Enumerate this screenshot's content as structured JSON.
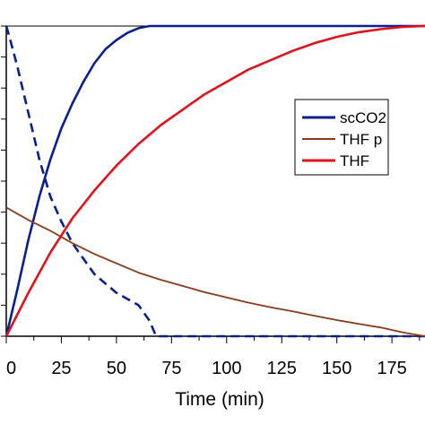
{
  "chart_data": {
    "type": "line",
    "title": "",
    "xlabel": "Time (min)",
    "ylabel": "",
    "xlim": [
      0,
      190
    ],
    "ylim": [
      0,
      1
    ],
    "x_ticks": [
      0,
      25,
      50,
      75,
      100,
      125,
      150,
      175
    ],
    "grid": false,
    "legend_position": "right",
    "series": [
      {
        "name": "scCO2",
        "color": "#0a1f8f",
        "dash": "solid",
        "x": [
          0,
          5,
          10,
          15,
          20,
          25,
          30,
          35,
          40,
          45,
          50,
          55,
          60,
          65,
          70,
          190
        ],
        "y": [
          0.0,
          0.15,
          0.31,
          0.45,
          0.57,
          0.67,
          0.75,
          0.82,
          0.88,
          0.925,
          0.955,
          0.978,
          0.993,
          1.0,
          1.0,
          1.0
        ]
      },
      {
        "name": "",
        "color": "#0a1f8f",
        "dash": "dashed",
        "x": [
          0,
          2,
          5,
          10,
          15,
          20,
          25,
          30,
          33,
          35,
          38,
          40,
          45,
          50,
          55,
          60,
          65,
          68,
          70,
          190
        ],
        "y": [
          1.0,
          0.95,
          0.87,
          0.72,
          0.57,
          0.45,
          0.37,
          0.3,
          0.27,
          0.25,
          0.22,
          0.2,
          0.17,
          0.14,
          0.12,
          0.1,
          0.05,
          0.0,
          0.0,
          0.0
        ]
      },
      {
        "name": "THF p",
        "color": "#8b3a1a",
        "dash": "solid",
        "x": [
          0,
          10,
          20,
          30,
          40,
          50,
          60,
          70,
          80,
          90,
          100,
          110,
          120,
          130,
          140,
          150,
          160,
          170,
          180,
          190
        ],
        "y": [
          0.415,
          0.375,
          0.34,
          0.3,
          0.265,
          0.235,
          0.205,
          0.182,
          0.162,
          0.142,
          0.125,
          0.108,
          0.093,
          0.08,
          0.066,
          0.052,
          0.04,
          0.028,
          0.012,
          0.0
        ]
      },
      {
        "name": "THF",
        "color": "#e0121b",
        "dash": "solid",
        "x": [
          0,
          10,
          20,
          30,
          40,
          50,
          60,
          70,
          80,
          90,
          100,
          110,
          120,
          130,
          140,
          150,
          160,
          170,
          180,
          190
        ],
        "y": [
          0.0,
          0.14,
          0.27,
          0.38,
          0.47,
          0.55,
          0.62,
          0.68,
          0.73,
          0.78,
          0.82,
          0.86,
          0.89,
          0.92,
          0.945,
          0.965,
          0.98,
          0.99,
          0.997,
          1.0
        ]
      }
    ],
    "legend": [
      {
        "label": "scCO2",
        "color": "#0a1f8f"
      },
      {
        "label": "THF p",
        "color": "#8b3a1a"
      },
      {
        "label": "THF",
        "color": "#e0121b"
      }
    ]
  }
}
